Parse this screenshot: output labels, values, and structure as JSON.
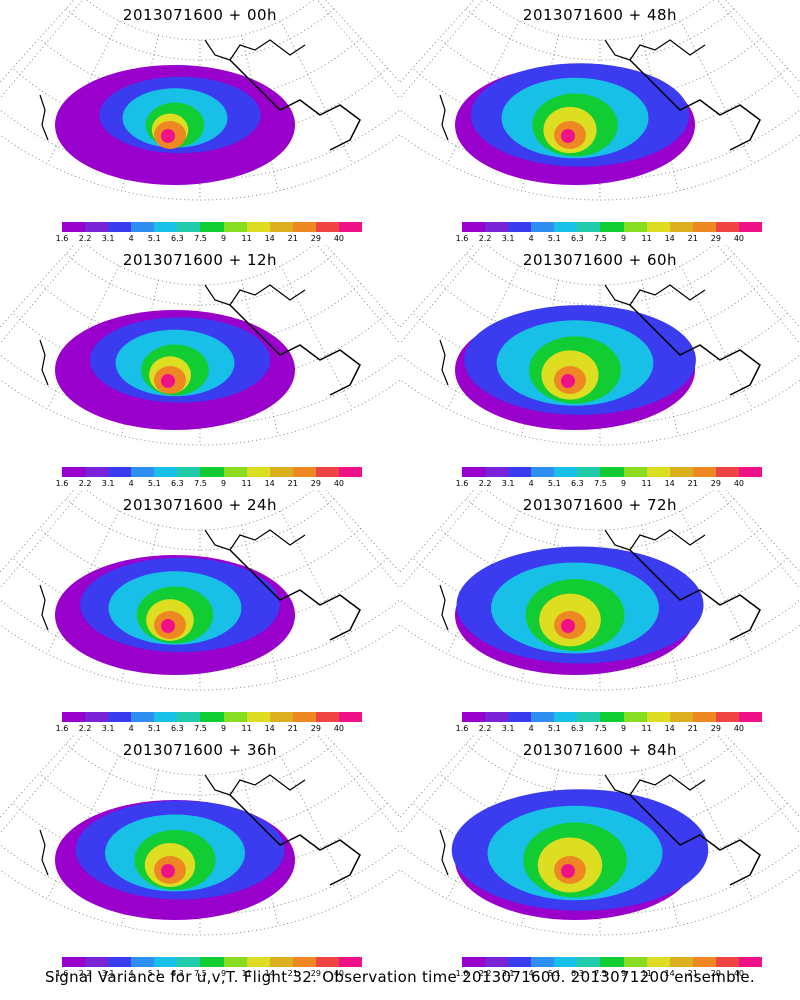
{
  "panels": [
    {
      "title": "2013071600 + 00h",
      "intensity": 0.25
    },
    {
      "title": "2013071600 + 48h",
      "intensity": 0.55
    },
    {
      "title": "2013071600 + 12h",
      "intensity": 0.35
    },
    {
      "title": "2013071600 + 60h",
      "intensity": 0.62
    },
    {
      "title": "2013071600 + 24h",
      "intensity": 0.45
    },
    {
      "title": "2013071600 + 72h",
      "intensity": 0.7
    },
    {
      "title": "2013071600 + 36h",
      "intensity": 0.5
    },
    {
      "title": "2013071600 + 84h",
      "intensity": 0.75
    }
  ],
  "colorbar": {
    "colors": [
      "#9900cc",
      "#7a22d6",
      "#3b3bf0",
      "#2f8ff0",
      "#18c0e8",
      "#22ccaa",
      "#11cc33",
      "#88dd22",
      "#dddd22",
      "#ddb022",
      "#ee8822",
      "#ee4444",
      "#ee1188"
    ],
    "labels": [
      "1.6",
      "2.2",
      "3.1",
      "4",
      "5.1",
      "6.3",
      "7.5",
      "9",
      "11",
      "14",
      "21",
      "29",
      "40"
    ]
  },
  "caption": "Signal Variance for u,v,T. Flight 32. Observation time 2013071600. 2013071200 ensemble."
}
